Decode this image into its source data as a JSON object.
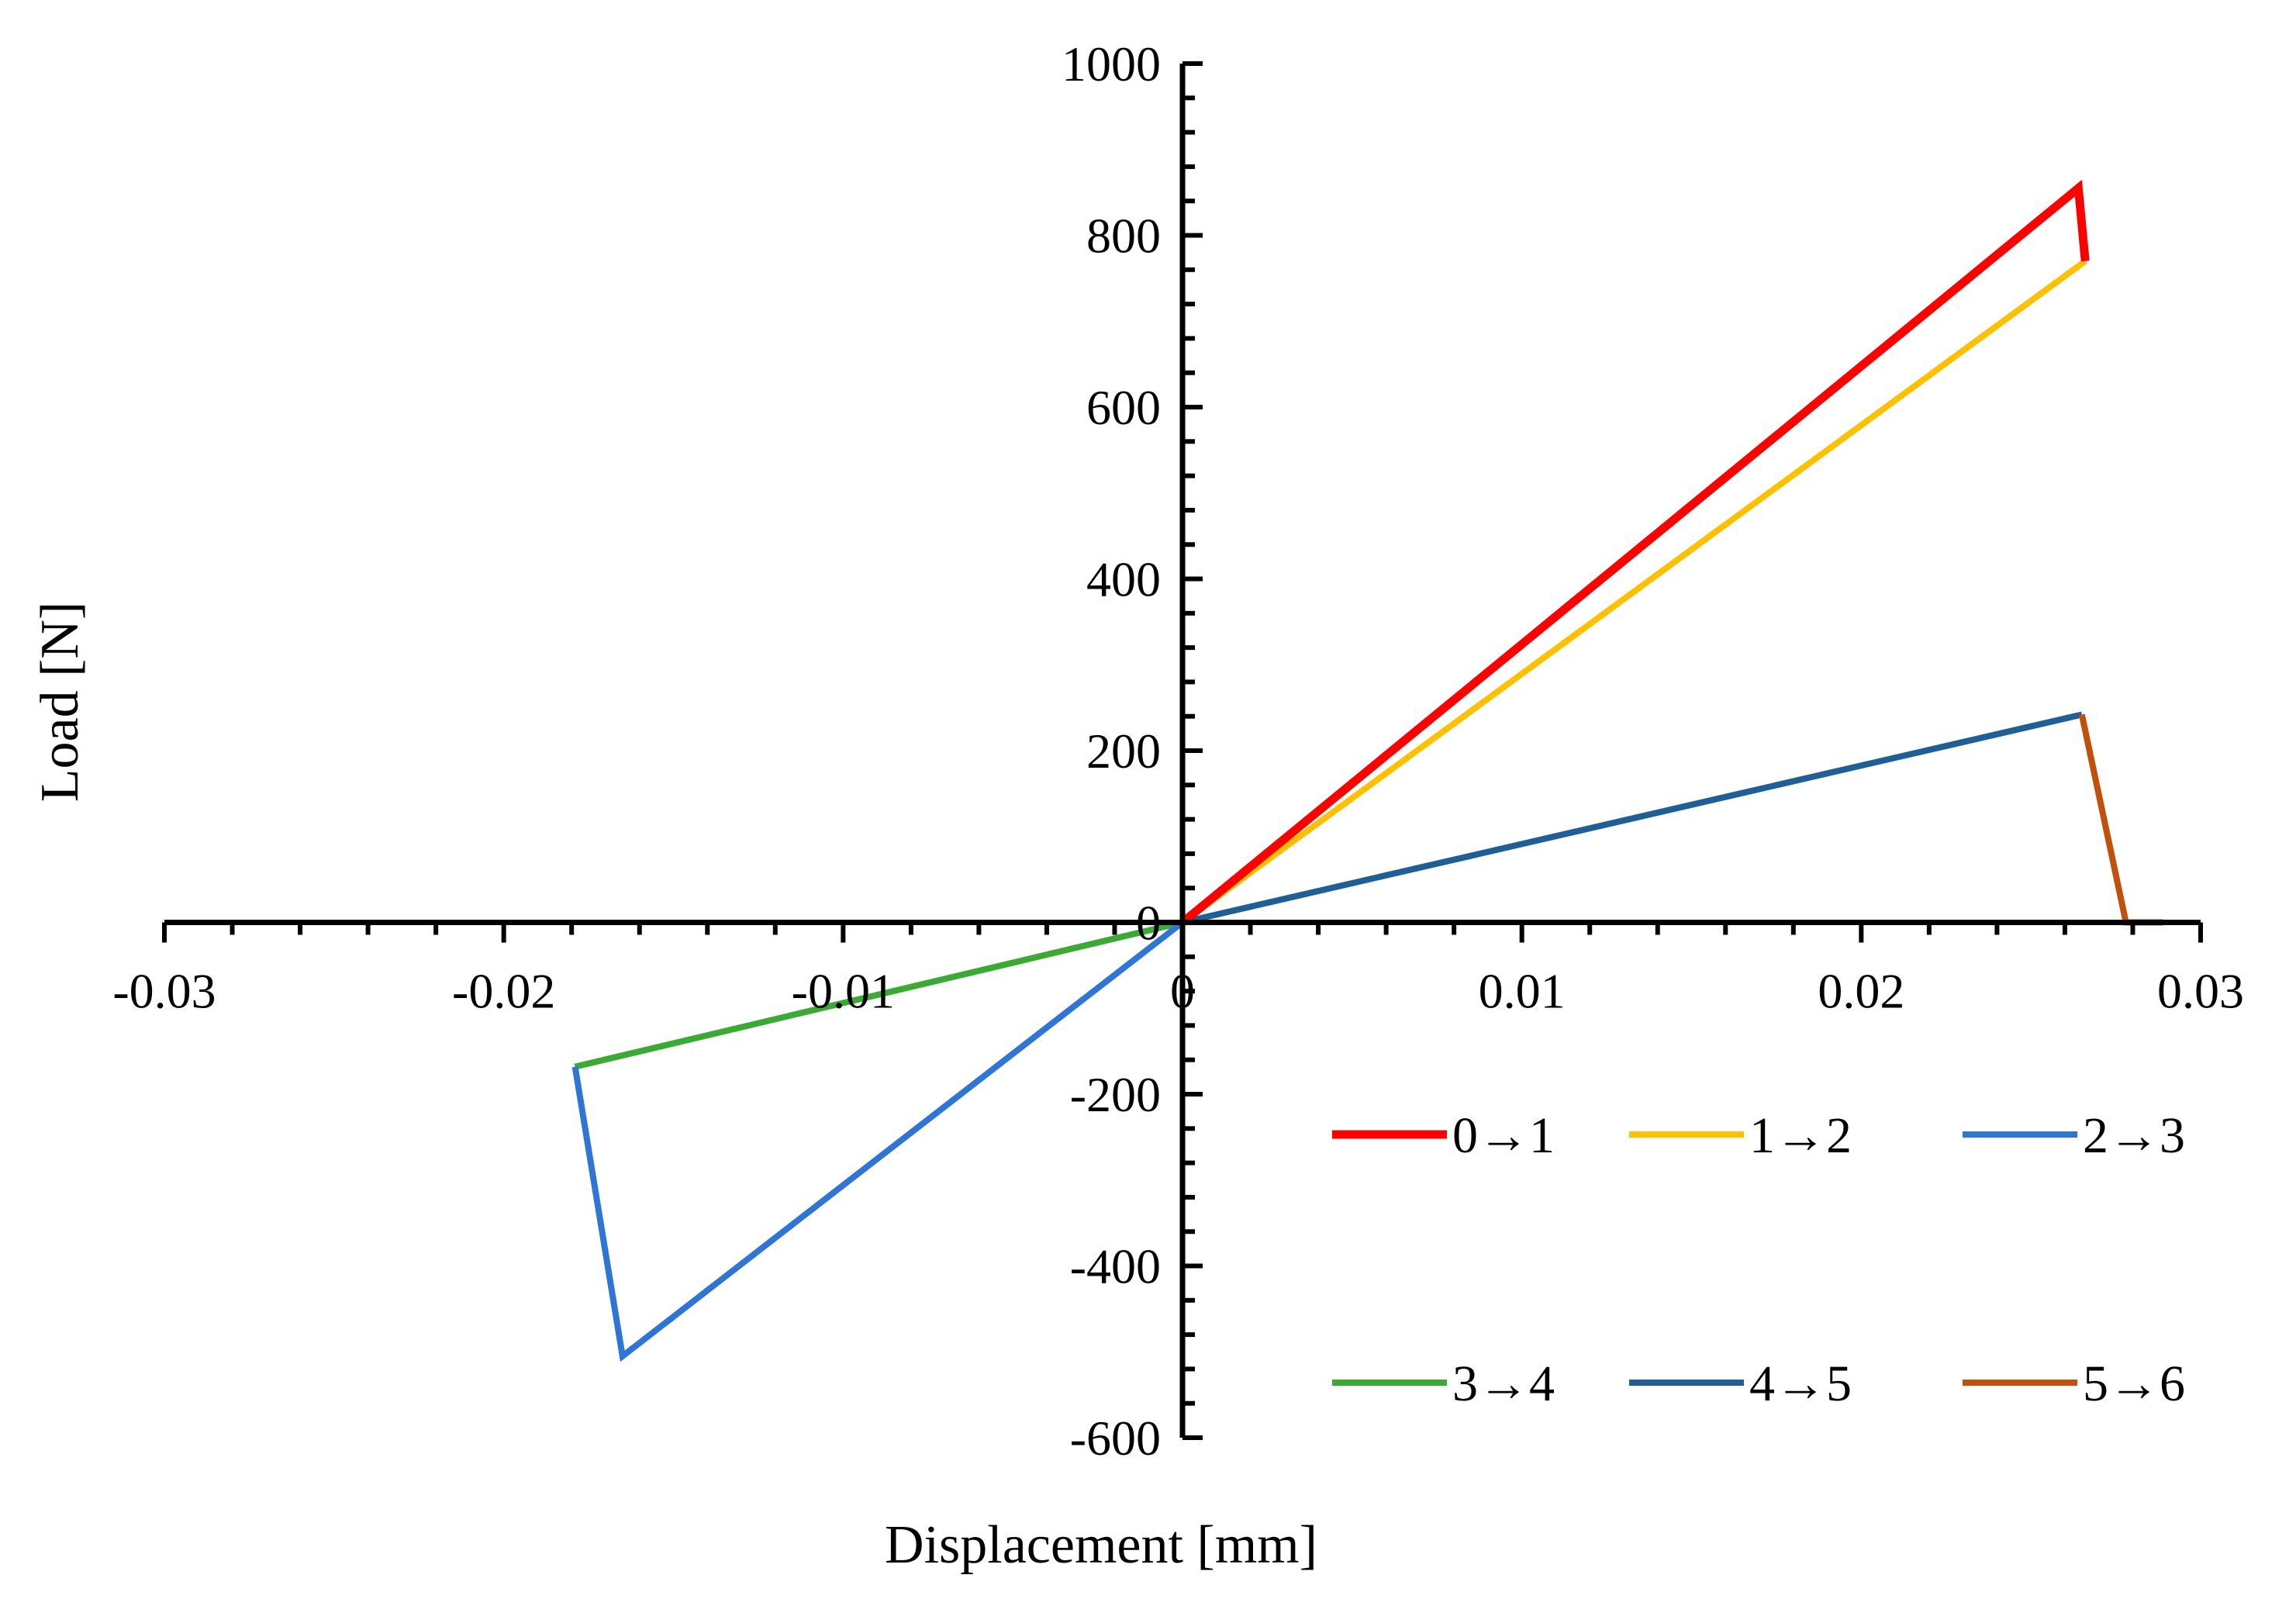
{
  "chart_data": {
    "type": "line",
    "title": "",
    "xlabel": "Displacement [mm]",
    "ylabel": "Load [N]",
    "xlim": [
      -0.03,
      0.03
    ],
    "ylim": [
      -600,
      1000
    ],
    "x_tick_labels": [
      "-0.03",
      "-0.02",
      "-0.01",
      "0",
      "0.01",
      "0.02",
      "0.03"
    ],
    "y_tick_labels": [
      "1000",
      "800",
      "600",
      "400",
      "200",
      "0",
      "-200",
      "-400",
      "-600"
    ],
    "x_ticks": [
      -0.03,
      -0.02,
      -0.01,
      0,
      0.01,
      0.02,
      0.03
    ],
    "y_ticks": [
      1000,
      800,
      600,
      400,
      200,
      0,
      -200,
      -400,
      -600
    ],
    "grid": false,
    "legend_position": "bottom-right",
    "series": [
      {
        "name": "0→1",
        "color": "#ff0000",
        "points": [
          [
            0,
            0
          ],
          [
            0.0264,
            855
          ],
          [
            0.0266,
            770
          ]
        ]
      },
      {
        "name": "1→2",
        "color": "#ffc000",
        "points": [
          [
            0,
            0
          ],
          [
            0.0266,
            770
          ]
        ]
      },
      {
        "name": "2→3",
        "color": "#2e75d6",
        "points": [
          [
            0,
            0
          ],
          [
            -0.0165,
            -505
          ],
          [
            -0.0179,
            -168
          ]
        ]
      },
      {
        "name": "3→4",
        "color": "#3aaa35",
        "points": [
          [
            -0.0179,
            -168
          ],
          [
            0,
            0
          ]
        ]
      },
      {
        "name": "4→5",
        "color": "#1f5f95",
        "points": [
          [
            0,
            0
          ],
          [
            0.0265,
            242
          ]
        ]
      },
      {
        "name": "5→6",
        "color": "#c0500a",
        "points": [
          [
            0.0265,
            242
          ],
          [
            0.0278,
            0
          ],
          [
            0.0289,
            0
          ]
        ]
      }
    ]
  }
}
